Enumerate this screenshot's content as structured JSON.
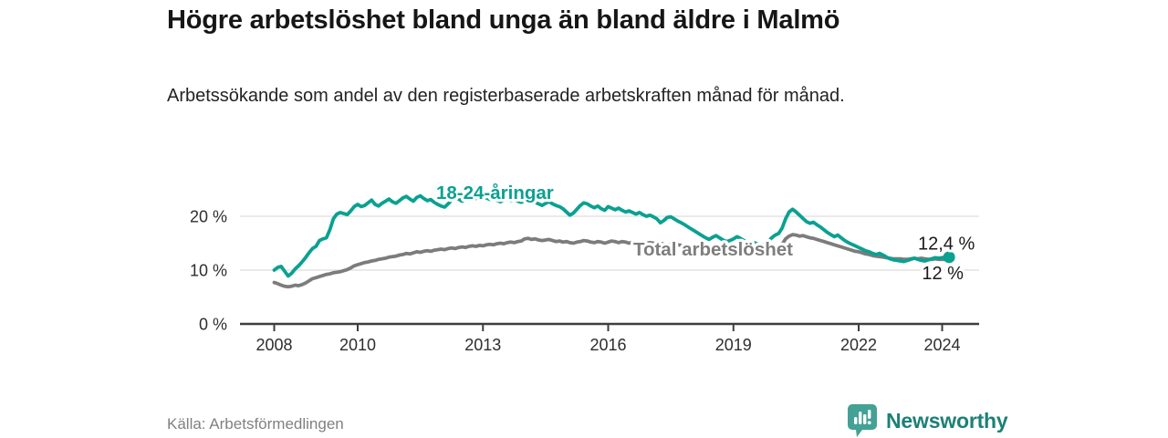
{
  "header": {
    "title": "Högre arbetslöshet bland unga än bland äldre i Malmö",
    "subtitle": "Arbetssökande som andel av den registerbaserade arbetskraften månad för månad."
  },
  "footer": {
    "source": "Källa: Arbetsförmedlingen",
    "brand": "Newsworthy",
    "brand_icon": "bar-chart-speech-bubble-icon",
    "brand_icon_color": "#43a195",
    "brand_text_color": "#1d8076"
  },
  "chart_data": {
    "type": "line",
    "title": "Högre arbetslöshet bland unga än bland äldre i Malmö",
    "xlabel": "",
    "ylabel": "",
    "frequency": "monthly",
    "x_start": "2008-01",
    "x_end": "2024-03",
    "grid": "horizontal-only",
    "legend_position": "inline-labels",
    "ylim": [
      0,
      26
    ],
    "y_ticks": [
      {
        "value": 0,
        "label": "0 %"
      },
      {
        "value": 10,
        "label": "10 %"
      },
      {
        "value": 20,
        "label": "20 %"
      }
    ],
    "x_ticks": [
      {
        "year": 2008,
        "label": "2008"
      },
      {
        "year": 2010,
        "label": "2010"
      },
      {
        "year": 2013,
        "label": "2013"
      },
      {
        "year": 2016,
        "label": "2016"
      },
      {
        "year": 2019,
        "label": "2019"
      },
      {
        "year": 2022,
        "label": "2022"
      },
      {
        "year": 2024,
        "label": "2024"
      }
    ],
    "style": {
      "grid_color": "#dedede",
      "axis_color": "#3e3e3e",
      "tick_text_color": "#2e2e2e",
      "annotation_color": "#1a1a1a",
      "background": "#ffffff"
    },
    "series": [
      {
        "name": "Total arbetslöshet",
        "color": "#7c7c7c",
        "end_label": "12 %",
        "end_value": 12.0,
        "end_dot": false,
        "label_at": {
          "year": 2016.6,
          "pct": 12.75
        },
        "values": [
          7.7,
          7.5,
          7.2,
          7.0,
          6.9,
          7.0,
          7.2,
          7.1,
          7.3,
          7.6,
          8.0,
          8.4,
          8.6,
          8.8,
          9.0,
          9.2,
          9.3,
          9.5,
          9.6,
          9.7,
          9.9,
          10.1,
          10.4,
          10.8,
          11.0,
          11.2,
          11.4,
          11.5,
          11.7,
          11.8,
          12.0,
          12.1,
          12.2,
          12.4,
          12.5,
          12.6,
          12.8,
          12.9,
          13.1,
          13.0,
          13.2,
          13.4,
          13.3,
          13.5,
          13.6,
          13.5,
          13.7,
          13.8,
          13.9,
          13.8,
          14.0,
          14.1,
          14.0,
          14.2,
          14.3,
          14.2,
          14.4,
          14.5,
          14.4,
          14.6,
          14.5,
          14.7,
          14.8,
          14.7,
          14.9,
          15.0,
          14.9,
          15.1,
          15.2,
          15.1,
          15.3,
          15.4,
          15.8,
          15.9,
          15.7,
          15.8,
          15.6,
          15.5,
          15.6,
          15.7,
          15.5,
          15.3,
          15.4,
          15.2,
          15.3,
          15.1,
          15.0,
          15.2,
          15.3,
          15.5,
          15.4,
          15.2,
          15.1,
          15.3,
          15.2,
          15.0,
          15.2,
          15.4,
          15.3,
          15.1,
          15.3,
          15.2,
          15.0,
          15.2,
          15.1,
          15.0,
          14.9,
          15.0,
          15.1,
          15.0,
          14.9,
          15.0,
          14.8,
          14.7,
          14.8,
          14.9,
          14.7,
          14.6,
          14.5,
          14.4,
          14.2,
          14.0,
          13.9,
          13.7,
          13.5,
          13.4,
          13.5,
          13.6,
          13.4,
          13.3,
          13.2,
          13.1,
          13.0,
          12.9,
          12.8,
          12.9,
          12.8,
          12.7,
          12.8,
          12.9,
          13.0,
          13.2,
          13.4,
          13.6,
          13.8,
          14.0,
          14.8,
          15.8,
          16.3,
          16.6,
          16.5,
          16.3,
          16.4,
          16.2,
          16.0,
          15.9,
          15.7,
          15.5,
          15.3,
          15.1,
          14.9,
          14.7,
          14.5,
          14.3,
          14.1,
          13.9,
          13.7,
          13.5,
          13.4,
          13.2,
          13.0,
          12.9,
          12.7,
          12.6,
          12.5,
          12.4,
          12.3,
          12.2,
          12.1,
          12.1,
          12.1,
          12.0,
          12.0,
          12.1,
          12.2,
          12.1,
          12.2,
          12.1,
          12.0,
          12.0,
          12.1,
          12.0,
          12.0,
          12.0,
          12.0
        ]
      },
      {
        "name": "18-24-åringar",
        "color": "#0aa191",
        "end_label": "12,4 %",
        "end_value": 12.4,
        "end_dot": true,
        "label_at": {
          "year": 2011.88,
          "pct": 23.2
        },
        "values": [
          10.0,
          10.5,
          10.7,
          9.8,
          8.9,
          9.4,
          10.2,
          10.8,
          11.5,
          12.3,
          13.2,
          14.0,
          14.4,
          15.5,
          15.8,
          16.0,
          17.5,
          19.5,
          20.4,
          20.7,
          20.5,
          20.3,
          21.0,
          21.8,
          22.2,
          21.8,
          22.0,
          22.5,
          23.0,
          22.2,
          21.9,
          22.4,
          22.8,
          23.2,
          22.7,
          22.4,
          22.9,
          23.4,
          23.7,
          23.2,
          22.8,
          23.5,
          23.8,
          23.3,
          22.9,
          23.1,
          22.6,
          22.2,
          21.9,
          21.7,
          22.3,
          23.0,
          23.5,
          23.2,
          22.8,
          23.1,
          23.4,
          23.6,
          23.3,
          23.5,
          23.6,
          23.4,
          23.1,
          23.3,
          23.0,
          22.7,
          23.0,
          23.2,
          22.9,
          23.1,
          22.8,
          22.6,
          22.9,
          23.2,
          23.0,
          22.6,
          22.3,
          22.0,
          22.4,
          22.7,
          22.3,
          22.0,
          21.8,
          21.4,
          20.8,
          20.2,
          20.6,
          21.3,
          22.0,
          22.5,
          22.3,
          21.9,
          21.6,
          21.9,
          21.4,
          21.1,
          21.8,
          21.5,
          21.2,
          21.5,
          21.1,
          20.8,
          21.0,
          20.7,
          20.4,
          20.7,
          20.3,
          20.0,
          20.2,
          19.9,
          19.5,
          18.8,
          19.2,
          19.8,
          19.9,
          19.5,
          19.1,
          18.8,
          18.4,
          18.0,
          17.6,
          17.2,
          16.8,
          16.4,
          16.0,
          15.7,
          16.1,
          16.4,
          16.0,
          15.6,
          15.3,
          15.5,
          15.8,
          16.2,
          15.9,
          15.5,
          15.2,
          14.9,
          15.1,
          14.8,
          14.6,
          14.9,
          15.3,
          16.0,
          16.5,
          16.8,
          17.8,
          19.5,
          20.8,
          21.3,
          20.8,
          20.2,
          19.6,
          19.0,
          18.7,
          18.9,
          18.4,
          18.0,
          17.5,
          17.0,
          16.6,
          16.2,
          16.5,
          16.0,
          15.5,
          15.1,
          14.8,
          14.5,
          14.2,
          13.9,
          13.6,
          13.4,
          13.1,
          12.9,
          13.1,
          12.8,
          12.4,
          12.1,
          11.9,
          11.8,
          11.7,
          11.6,
          11.8,
          12.0,
          12.2,
          12.0,
          11.8,
          11.7,
          11.9,
          12.1,
          12.3,
          12.2,
          12.3,
          12.4,
          12.4
        ]
      }
    ]
  }
}
